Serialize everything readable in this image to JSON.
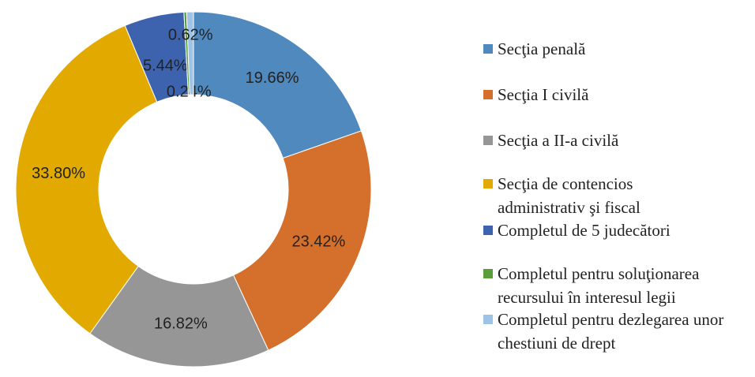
{
  "chart_data": {
    "type": "donut",
    "categories": [
      "Secţia penală",
      "Secţia I civilă",
      "Secţia a II-a civilă",
      "Secţia de contencios administrativ şi fiscal",
      "Completul de 5 judecători",
      "Completul pentru soluţionarea recursului în interesul legii",
      "Completul pentru dezlegarea unor chestiuni de drept"
    ],
    "values": [
      19.66,
      23.42,
      16.82,
      33.8,
      5.44,
      0.24,
      0.62
    ],
    "value_labels": [
      "19.66%",
      "23.42%",
      "16.82%",
      "33.80%",
      "5.44%",
      "0.24%",
      "0.62%"
    ],
    "colors": [
      "#4f89bd",
      "#d46f2c",
      "#969696",
      "#e2aa00",
      "#3d63ae",
      "#5a9e3c",
      "#9dc3e6"
    ],
    "legend": "right"
  }
}
